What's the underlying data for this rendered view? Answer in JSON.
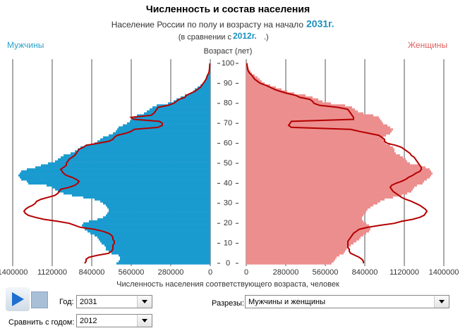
{
  "chart_data": {
    "type": "pyramid",
    "title": "Численность и состав населения",
    "subtitle": "Население России по полу и возрасту на начало",
    "subtitle_year": "2031г.",
    "compare_prefix": "(в сравнении с",
    "compare_year": "2012г.",
    "compare_suffix": ".)",
    "y_label": "Возраст (лет)",
    "x_label": "Численность населения соответствующего возраста,  человек",
    "ylim": [
      0,
      100
    ],
    "yticks": [
      0,
      10,
      20,
      30,
      40,
      50,
      60,
      70,
      80,
      90,
      100
    ],
    "xlim": [
      0,
      1400000
    ],
    "xticks": [
      0,
      280000,
      560000,
      840000,
      1120000,
      1400000
    ],
    "grid": true,
    "ages": [
      0,
      1,
      2,
      3,
      4,
      5,
      6,
      7,
      8,
      9,
      10,
      11,
      12,
      13,
      14,
      15,
      16,
      17,
      18,
      19,
      20,
      21,
      22,
      23,
      24,
      25,
      26,
      27,
      28,
      29,
      30,
      31,
      32,
      33,
      34,
      35,
      36,
      37,
      38,
      39,
      40,
      41,
      42,
      43,
      44,
      45,
      46,
      47,
      48,
      49,
      50,
      51,
      52,
      53,
      54,
      55,
      56,
      57,
      58,
      59,
      60,
      61,
      62,
      63,
      64,
      65,
      66,
      67,
      68,
      69,
      70,
      71,
      72,
      73,
      74,
      75,
      76,
      77,
      78,
      79,
      80,
      81,
      82,
      83,
      84,
      85,
      86,
      87,
      88,
      89,
      90,
      91,
      92,
      93,
      94,
      95,
      96,
      97,
      98,
      99,
      100
    ],
    "series": [
      {
        "name": "Мужчины",
        "color": "#1a9bd0",
        "side": "left",
        "values": [
          665000,
          650000,
          640000,
          640000,
          650000,
          700000,
          720000,
          740000,
          740000,
          750000,
          770000,
          780000,
          790000,
          800000,
          820000,
          850000,
          870000,
          890000,
          900000,
          910000,
          900000,
          860000,
          800000,
          760000,
          740000,
          730000,
          720000,
          720000,
          730000,
          740000,
          760000,
          780000,
          820000,
          900000,
          980000,
          1040000,
          1080000,
          1100000,
          1120000,
          1160000,
          1290000,
          1300000,
          1340000,
          1350000,
          1360000,
          1350000,
          1340000,
          1300000,
          1240000,
          1200000,
          1150000,
          1100000,
          1080000,
          1060000,
          1040000,
          990000,
          960000,
          940000,
          920000,
          880000,
          820000,
          800000,
          780000,
          760000,
          720000,
          690000,
          670000,
          660000,
          650000,
          620000,
          590000,
          570000,
          560000,
          540000,
          520000,
          470000,
          450000,
          430000,
          410000,
          380000,
          300000,
          260000,
          240000,
          210000,
          180000,
          140000,
          120000,
          110000,
          90000,
          70000,
          50000,
          40000,
          35000,
          30000,
          25000,
          15000,
          10000,
          8000,
          6000,
          4000,
          3000
        ]
      },
      {
        "name": "Женщины",
        "color": "#ec8e8e",
        "side": "right",
        "values": [
          605000,
          620000,
          630000,
          640000,
          660000,
          690000,
          700000,
          710000,
          720000,
          740000,
          760000,
          780000,
          800000,
          810000,
          830000,
          850000,
          870000,
          880000,
          880000,
          870000,
          850000,
          830000,
          820000,
          820000,
          830000,
          840000,
          850000,
          860000,
          880000,
          900000,
          930000,
          950000,
          980000,
          1040000,
          1100000,
          1140000,
          1170000,
          1180000,
          1190000,
          1210000,
          1250000,
          1260000,
          1280000,
          1300000,
          1310000,
          1320000,
          1310000,
          1300000,
          1270000,
          1230000,
          1160000,
          1140000,
          1130000,
          1110000,
          1090000,
          1060000,
          1050000,
          1050000,
          1040000,
          1020000,
          990000,
          980000,
          980000,
          970000,
          990000,
          1020000,
          1030000,
          1040000,
          1020000,
          1000000,
          970000,
          960000,
          950000,
          940000,
          900000,
          830000,
          790000,
          770000,
          750000,
          700000,
          600000,
          540000,
          510000,
          470000,
          420000,
          340000,
          290000,
          250000,
          210000,
          170000,
          130000,
          110000,
          95000,
          80000,
          60000,
          40000,
          30000,
          20000,
          15000,
          10000,
          8000
        ]
      }
    ],
    "comparison_series": [
      {
        "color": "#b40000",
        "side": "left",
        "values": [
          890000,
          880000,
          880000,
          860000,
          800000,
          720000,
          700000,
          690000,
          690000,
          690000,
          680000,
          680000,
          690000,
          690000,
          700000,
          720000,
          760000,
          820000,
          920000,
          960000,
          1000000,
          1080000,
          1180000,
          1240000,
          1290000,
          1310000,
          1320000,
          1310000,
          1290000,
          1260000,
          1240000,
          1230000,
          1200000,
          1150000,
          1100000,
          1080000,
          1070000,
          1060000,
          1000000,
          960000,
          940000,
          930000,
          950000,
          980000,
          1020000,
          1040000,
          1050000,
          1060000,
          1040000,
          1020000,
          1020000,
          1010000,
          1000000,
          980000,
          960000,
          950000,
          940000,
          930000,
          900000,
          880000,
          800000,
          720000,
          690000,
          680000,
          660000,
          600000,
          560000,
          540000,
          370000,
          340000,
          340000,
          360000,
          540000,
          560000,
          420000,
          400000,
          390000,
          380000,
          370000,
          300000,
          260000,
          240000,
          220000,
          180000,
          170000,
          140000,
          110000,
          90000,
          70000,
          60000,
          50000,
          40000,
          30000,
          25000,
          20000,
          12000,
          8000,
          6000,
          5000,
          4000,
          3000
        ]
      },
      {
        "color": "#b40000",
        "side": "right",
        "values": [
          830000,
          830000,
          820000,
          800000,
          770000,
          740000,
          730000,
          730000,
          720000,
          720000,
          720000,
          720000,
          730000,
          740000,
          750000,
          760000,
          780000,
          800000,
          860000,
          950000,
          1050000,
          1100000,
          1180000,
          1230000,
          1260000,
          1270000,
          1280000,
          1270000,
          1250000,
          1230000,
          1200000,
          1170000,
          1130000,
          1100000,
          1080000,
          1060000,
          1040000,
          1030000,
          1020000,
          1030000,
          1060000,
          1100000,
          1130000,
          1150000,
          1180000,
          1200000,
          1230000,
          1240000,
          1240000,
          1230000,
          1220000,
          1210000,
          1200000,
          1190000,
          1170000,
          1160000,
          1140000,
          1120000,
          1100000,
          1060000,
          1000000,
          980000,
          980000,
          960000,
          940000,
          870000,
          800000,
          740000,
          320000,
          300000,
          310000,
          320000,
          760000,
          760000,
          750000,
          740000,
          730000,
          720000,
          650000,
          520000,
          480000,
          470000,
          450000,
          380000,
          350000,
          290000,
          240000,
          200000,
          170000,
          140000,
          100000,
          80000,
          60000,
          50000,
          40000,
          25000,
          15000,
          10000,
          8000,
          6000,
          4000
        ]
      }
    ]
  },
  "controls": {
    "year_label": "Год:",
    "year": "2031",
    "compare_label": "Сравнить с годом:",
    "compare": "2012",
    "cuts_label": "Разрезы:",
    "cuts": "Мужчины и женщины"
  }
}
